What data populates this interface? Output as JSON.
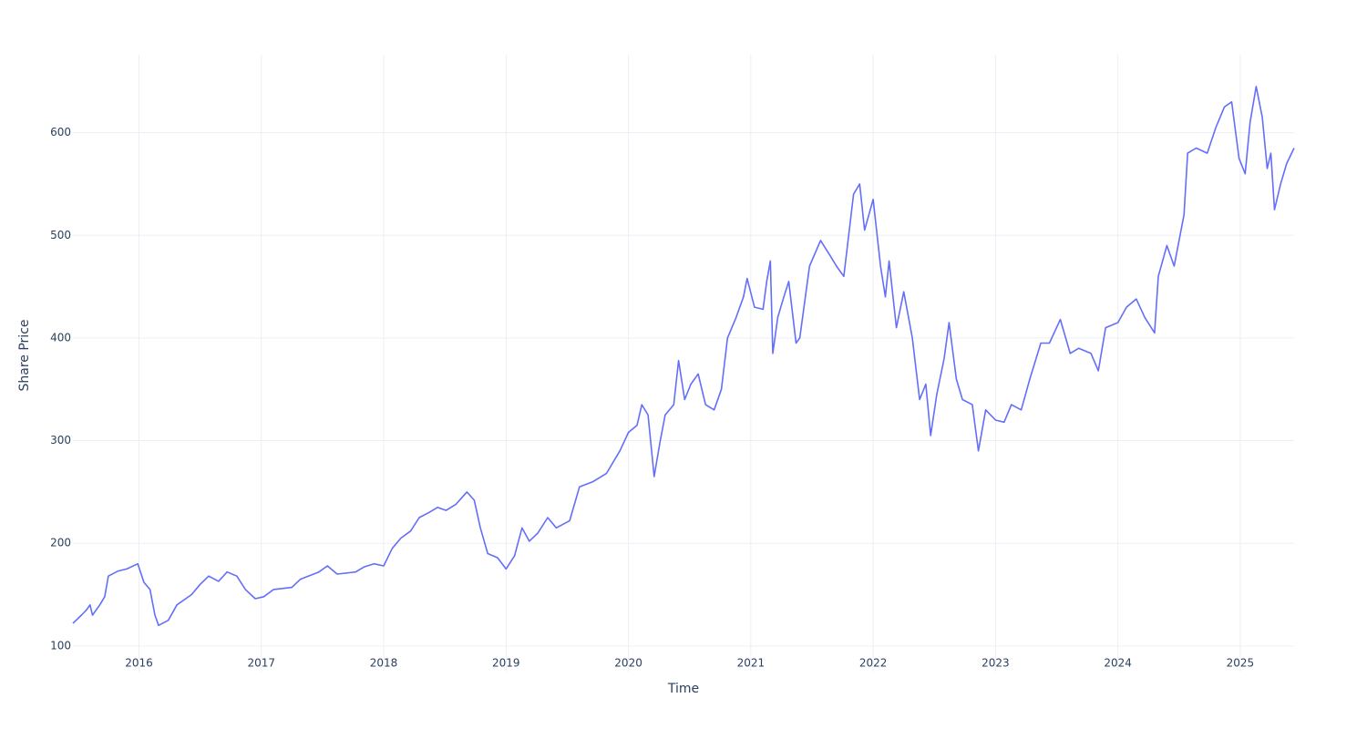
{
  "chart_data": {
    "type": "line",
    "x_label": "Time",
    "y_label": "Share Price",
    "color": "#636efa",
    "grid": true,
    "xlim": [
      2015.46,
      2025.44
    ],
    "ylim": [
      75,
      676
    ],
    "xticks": [
      2016,
      2017,
      2018,
      2019,
      2020,
      2021,
      2022,
      2023,
      2024,
      2025
    ],
    "yticks": [
      100,
      200,
      300,
      400,
      500,
      600
    ],
    "x": [
      2015.46,
      2015.53,
      2015.57,
      2015.6,
      2015.62,
      2015.68,
      2015.72,
      2015.75,
      2015.83,
      2015.9,
      2015.99,
      2016.04,
      2016.09,
      2016.13,
      2016.16,
      2016.24,
      2016.31,
      2016.43,
      2016.5,
      2016.57,
      2016.65,
      2016.72,
      2016.8,
      2016.87,
      2016.95,
      2017.02,
      2017.1,
      2017.25,
      2017.32,
      2017.47,
      2017.54,
      2017.62,
      2017.77,
      2017.84,
      2017.92,
      2018.0,
      2018.07,
      2018.14,
      2018.22,
      2018.29,
      2018.37,
      2018.44,
      2018.51,
      2018.59,
      2018.68,
      2018.74,
      2018.79,
      2018.85,
      2018.93,
      2019.0,
      2019.07,
      2019.13,
      2019.19,
      2019.26,
      2019.34,
      2019.41,
      2019.52,
      2019.6,
      2019.71,
      2019.82,
      2019.93,
      2020.0,
      2020.07,
      2020.11,
      2020.16,
      2020.21,
      2020.26,
      2020.3,
      2020.37,
      2020.41,
      2020.46,
      2020.51,
      2020.57,
      2020.63,
      2020.7,
      2020.76,
      2020.81,
      2020.88,
      2020.94,
      2020.97,
      2021.03,
      2021.1,
      2021.13,
      2021.16,
      2021.18,
      2021.22,
      2021.27,
      2021.31,
      2021.37,
      2021.4,
      2021.48,
      2021.57,
      2021.65,
      2021.7,
      2021.76,
      2021.84,
      2021.89,
      2021.93,
      2022.0,
      2022.06,
      2022.1,
      2022.13,
      2022.19,
      2022.25,
      2022.32,
      2022.38,
      2022.43,
      2022.47,
      2022.52,
      2022.58,
      2022.62,
      2022.68,
      2022.73,
      2022.81,
      2022.86,
      2022.92,
      2023.0,
      2023.07,
      2023.13,
      2023.21,
      2023.28,
      2023.37,
      2023.44,
      2023.53,
      2023.61,
      2023.68,
      2023.78,
      2023.84,
      2023.9,
      2024.0,
      2024.07,
      2024.15,
      2024.22,
      2024.3,
      2024.33,
      2024.4,
      2024.46,
      2024.54,
      2024.57,
      2024.64,
      2024.73,
      2024.8,
      2024.87,
      2024.93,
      2024.99,
      2025.04,
      2025.08,
      2025.13,
      2025.18,
      2025.22,
      2025.25,
      2025.28,
      2025.33,
      2025.38,
      2025.44
    ],
    "values": [
      122,
      130,
      135,
      140,
      130,
      140,
      148,
      168,
      173,
      175,
      180,
      162,
      155,
      130,
      120,
      125,
      140,
      150,
      160,
      168,
      163,
      172,
      168,
      155,
      146,
      148,
      155,
      157,
      165,
      172,
      178,
      170,
      172,
      177,
      180,
      178,
      195,
      205,
      212,
      225,
      230,
      235,
      232,
      238,
      250,
      242,
      215,
      190,
      186,
      175,
      188,
      215,
      202,
      210,
      225,
      215,
      222,
      255,
      260,
      268,
      290,
      308,
      315,
      335,
      325,
      265,
      300,
      325,
      335,
      378,
      340,
      355,
      365,
      335,
      330,
      350,
      400,
      420,
      440,
      458,
      430,
      428,
      455,
      475,
      385,
      420,
      440,
      455,
      395,
      400,
      470,
      495,
      480,
      470,
      460,
      540,
      550,
      505,
      535,
      470,
      440,
      475,
      410,
      445,
      400,
      340,
      355,
      305,
      345,
      380,
      415,
      360,
      340,
      335,
      290,
      330,
      320,
      318,
      335,
      330,
      360,
      395,
      395,
      418,
      385,
      390,
      385,
      368,
      410,
      415,
      430,
      438,
      420,
      405,
      460,
      490,
      470,
      520,
      580,
      585,
      580,
      605,
      625,
      630,
      575,
      560,
      610,
      645,
      615,
      565,
      580,
      525,
      550,
      570,
      585
    ]
  }
}
